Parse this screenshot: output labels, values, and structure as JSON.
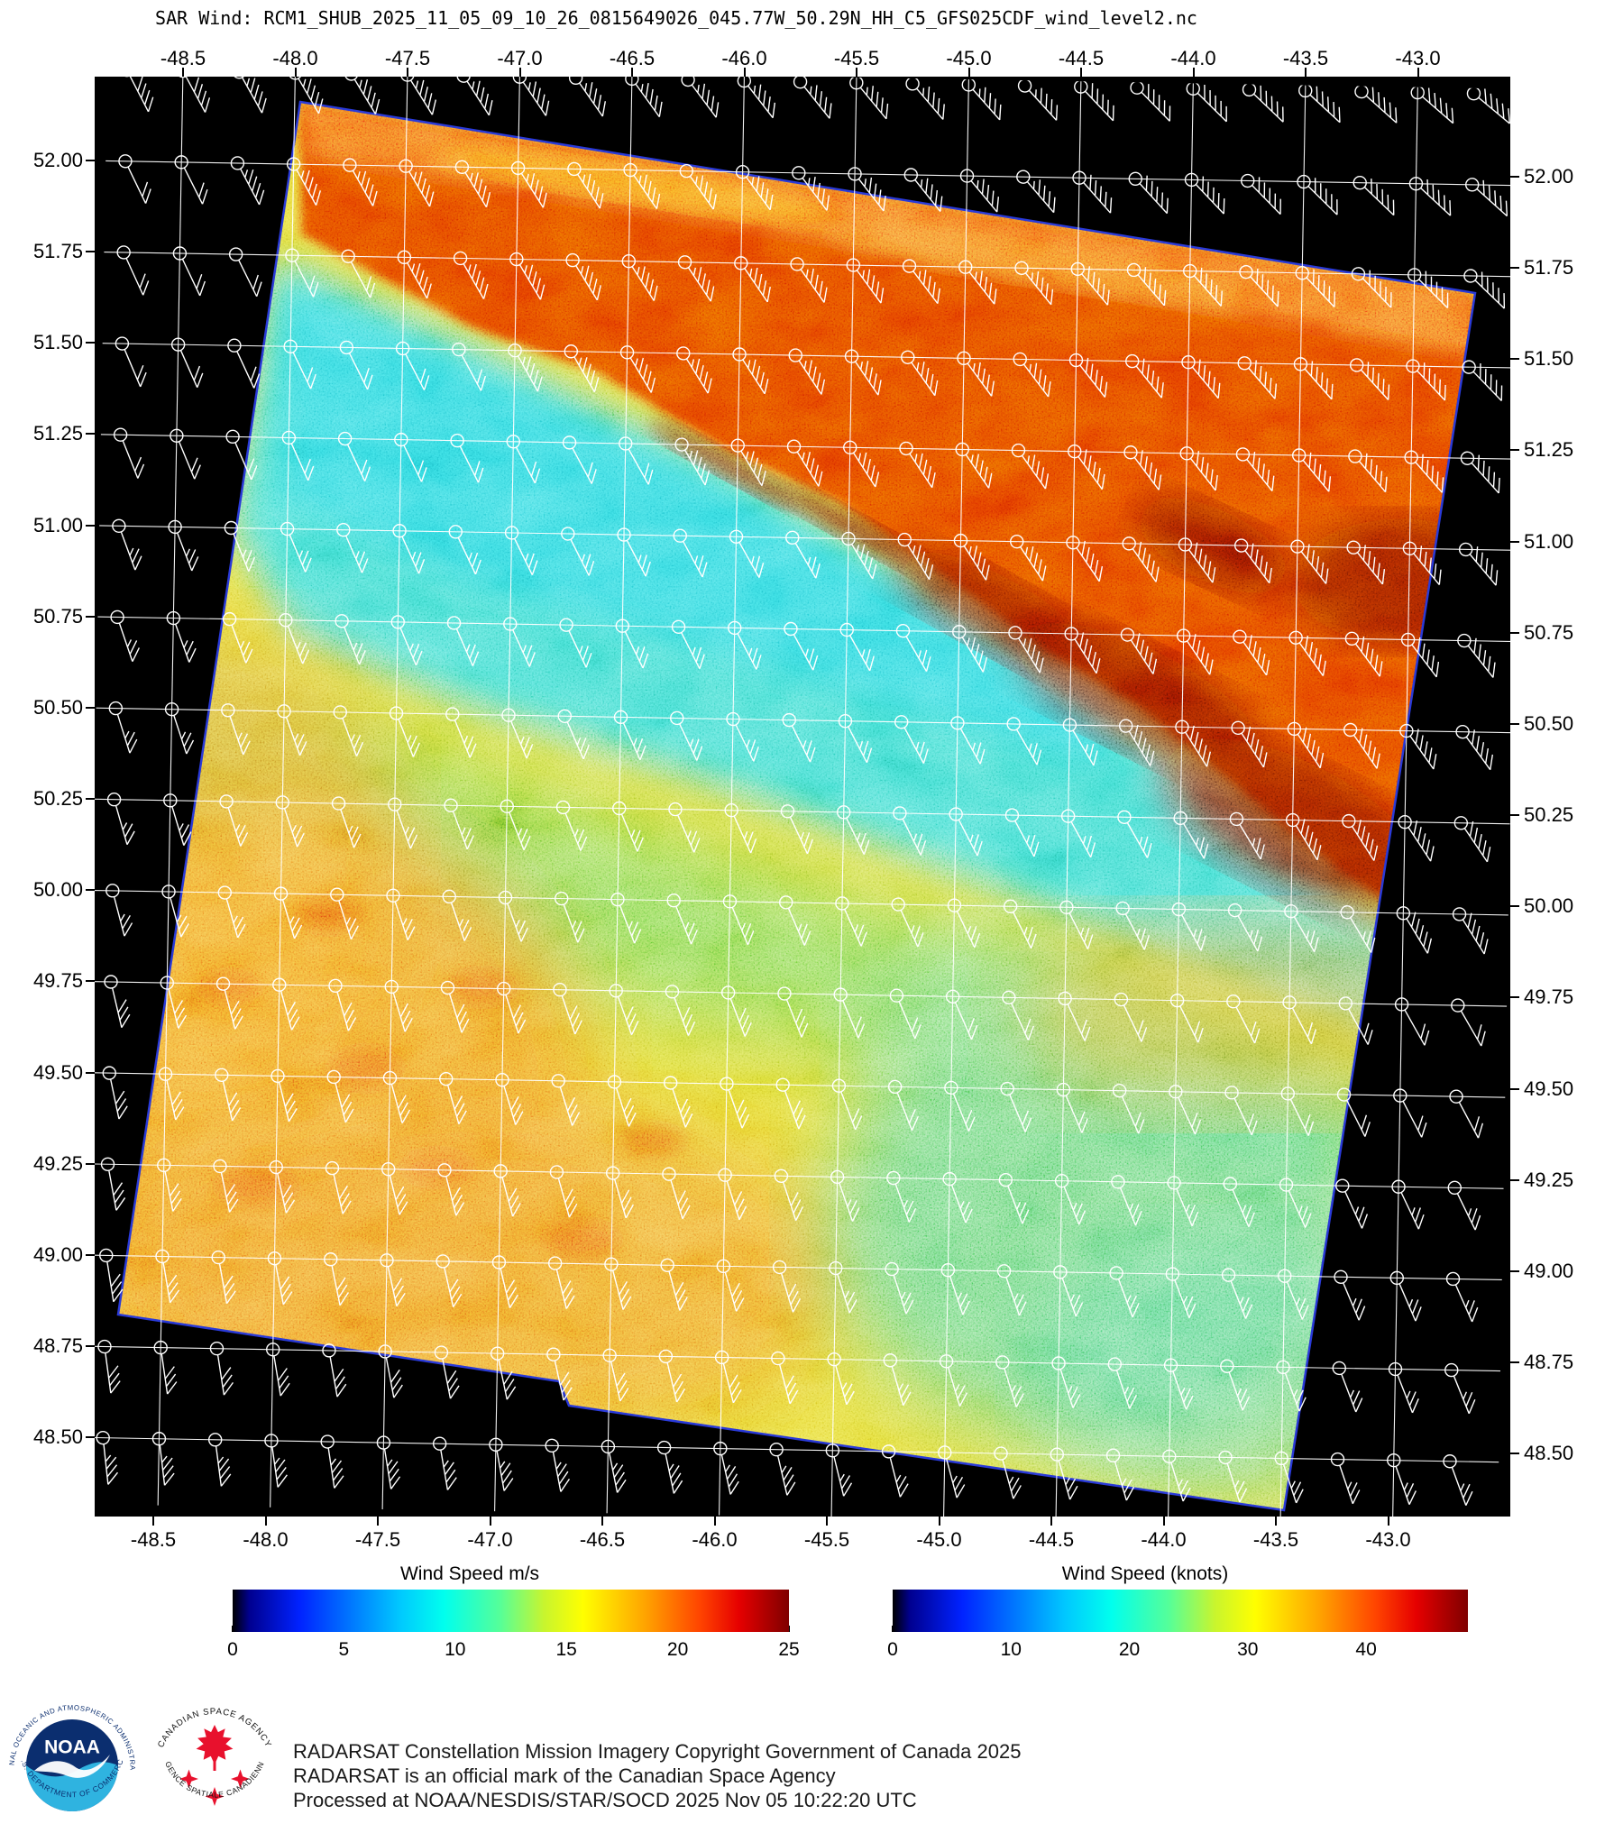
{
  "title": "SAR Wind: RCM1_SHUB_2025_11_05_09_10_26_0815649026_045.77W_50.29N_HH_C5_GFS025CDF_wind_level2.nc",
  "map": {
    "lon_labels": [
      "-48.5",
      "-48.0",
      "-47.5",
      "-47.0",
      "-46.5",
      "-46.0",
      "-45.5",
      "-45.0",
      "-44.5",
      "-44.0",
      "-43.5",
      "-43.0"
    ],
    "lat_labels": [
      "52.00",
      "51.75",
      "51.50",
      "51.25",
      "51.00",
      "50.75",
      "50.50",
      "50.25",
      "50.00",
      "49.75",
      "49.50",
      "49.25",
      "49.00",
      "48.75",
      "48.50"
    ],
    "background": "#000000",
    "graticule_color": "#ffffff",
    "wind_barb_color": "#ffffff",
    "swath_edge_color": "#2a3ad8",
    "region_colors": {
      "calm_cyan": "#3edbd3",
      "moderate_yellow": "#e3d832",
      "strong_orange": "#f09b25",
      "high_red": "#e13d05",
      "extreme_dark_red": "#7d0a00",
      "green_patch": "#55d795",
      "top_band_orange": "#f4731c"
    }
  },
  "wind_field": {
    "barb_rows": 16,
    "barb_cols": 25,
    "speed_min_kt": 18,
    "speed_max_kt": 48,
    "high_zone_kt": 42,
    "low_zone_kt": 20
  },
  "colorbars": [
    {
      "title": "Wind Speed m/s",
      "tick_values": [
        0,
        5,
        10,
        15,
        20,
        25
      ],
      "range": [
        0,
        25
      ],
      "gradient": [
        [
          "#000000",
          0
        ],
        [
          "#00008f",
          3
        ],
        [
          "#0022ff",
          12
        ],
        [
          "#00c8ff",
          30
        ],
        [
          "#00ffee",
          38
        ],
        [
          "#55ff99",
          48
        ],
        [
          "#c8f52e",
          56
        ],
        [
          "#ffff00",
          63
        ],
        [
          "#ffa500",
          74
        ],
        [
          "#ff4400",
          84
        ],
        [
          "#e60000",
          91
        ],
        [
          "#7f0000",
          100
        ]
      ]
    },
    {
      "title": "Wind Speed (knots)",
      "tick_values": [
        0,
        10,
        20,
        30,
        40
      ],
      "range": [
        0,
        48.6
      ],
      "gradient": [
        [
          "#000000",
          0
        ],
        [
          "#00008f",
          3
        ],
        [
          "#0022ff",
          12
        ],
        [
          "#00c8ff",
          30
        ],
        [
          "#00ffee",
          38
        ],
        [
          "#55ff99",
          48
        ],
        [
          "#c8f52e",
          56
        ],
        [
          "#ffff00",
          63
        ],
        [
          "#ffa500",
          74
        ],
        [
          "#ff4400",
          84
        ],
        [
          "#e60000",
          91
        ],
        [
          "#7f0000",
          100
        ]
      ]
    }
  ],
  "footer": {
    "lines": [
      "RADARSAT Constellation Mission Imagery Copyright Government of Canada 2025",
      "RADARSAT is an official mark of the Canadian Space Agency",
      "Processed at NOAA/NESDIS/STAR/SOCD 2025 Nov 05 10:22:20 UTC"
    ]
  },
  "logos": {
    "noaa": {
      "ring_top": "NATIONAL OCEANIC AND ATMOSPHERIC ADMINISTRATION",
      "ring_bottom": "U.S. DEPARTMENT OF COMMERCE",
      "center": "NOAA",
      "navy": "#0b2e6f",
      "cyan": "#2fb3e0"
    },
    "csa": {
      "ring_top": "CANADIAN SPACE AGENCY",
      "ring_bottom": "AGENCE SPATIALE CANADIENNE",
      "red": "#e8112d"
    }
  }
}
